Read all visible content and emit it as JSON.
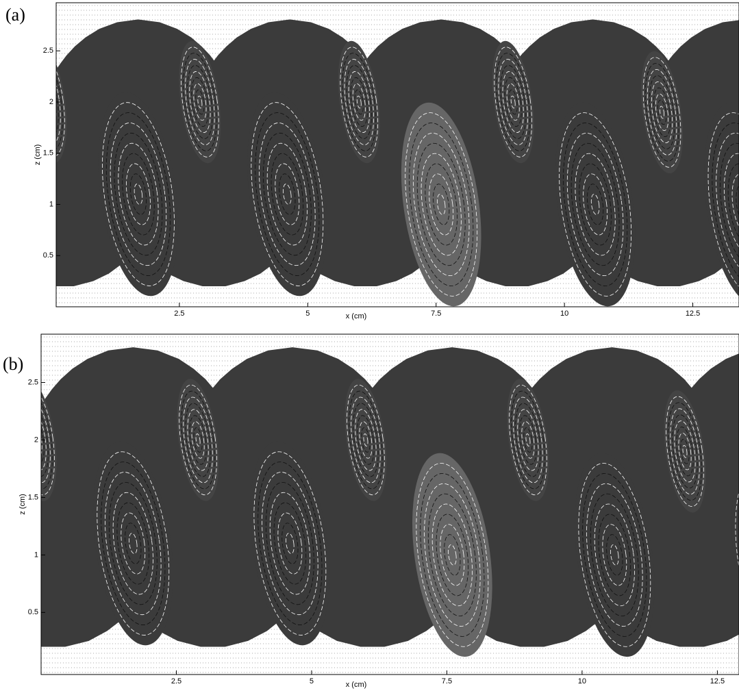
{
  "chart_data": [
    {
      "type": "flow",
      "panel": "(a)",
      "xlabel": "x (cm)",
      "ylabel": "z (cm)",
      "xlim": [
        0.1,
        13.4
      ],
      "ylim": [
        0,
        2.97
      ],
      "xticks": [
        2.5,
        5,
        7.5,
        10,
        12.5
      ],
      "yticks": [
        0.5,
        1,
        1.5,
        2,
        2.5
      ]
    },
    {
      "type": "flow",
      "panel": "(b)",
      "xlabel": "x (cm)",
      "ylabel": "z (cm)",
      "xlim": [
        0,
        12.9
      ],
      "ylim": [
        -0.04,
        2.92
      ],
      "xticks": [
        2.5,
        5,
        7.5,
        10,
        12.5
      ],
      "yticks": [
        0.5,
        1,
        1.5,
        2,
        2.5
      ]
    }
  ]
}
